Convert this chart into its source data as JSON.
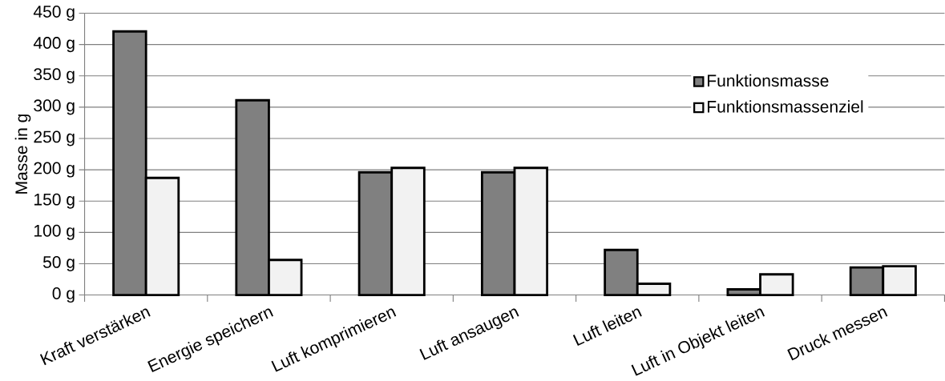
{
  "chart_data": {
    "type": "bar",
    "ylabel": "Masse in g",
    "categories": [
      "Kraft verstärken",
      "Energie speichern",
      "Luft komprimieren",
      "Luft ansaugen",
      "Luft leiten",
      "Luft in Objekt leiten",
      "Druck messen"
    ],
    "series": [
      {
        "name": "Funktionsmasse",
        "color": "#808080",
        "values": [
          421,
          311,
          196,
          196,
          72,
          9,
          44
        ]
      },
      {
        "name": "Funktionsmassenziel",
        "color": "#f2f2f2",
        "values": [
          187,
          56,
          203,
          203,
          18,
          33,
          46
        ]
      }
    ],
    "ylim": [
      0,
      450
    ],
    "yticks": [
      {
        "value": 0,
        "label": "0 g"
      },
      {
        "value": 50,
        "label": "50 g"
      },
      {
        "value": 100,
        "label": "100 g"
      },
      {
        "value": 150,
        "label": "150 g"
      },
      {
        "value": 200,
        "label": "200 g"
      },
      {
        "value": 250,
        "label": "250 g"
      },
      {
        "value": 300,
        "label": "300 g"
      },
      {
        "value": 350,
        "label": "350 g"
      },
      {
        "value": 400,
        "label": "400 g"
      },
      {
        "value": 450,
        "label": "450 g"
      }
    ],
    "grid": "y",
    "legend": "top right"
  }
}
